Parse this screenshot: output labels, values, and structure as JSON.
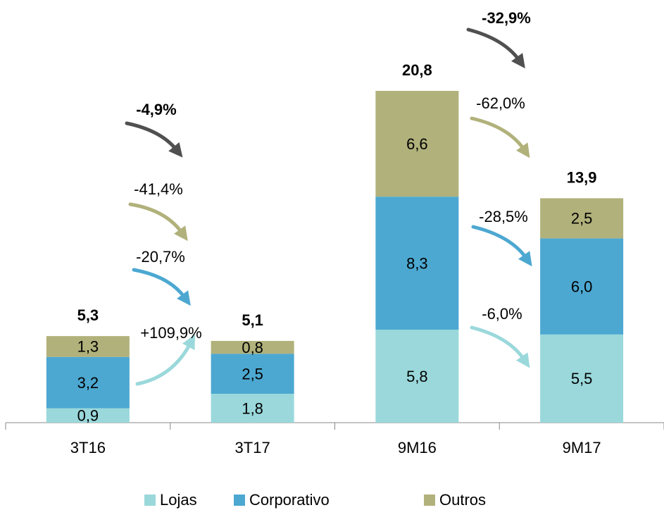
{
  "chart_data": {
    "type": "stacked-bar",
    "categories": [
      "3T16",
      "3T17",
      "9M16",
      "9M17"
    ],
    "series": [
      {
        "name": "Lojas",
        "color": "#9ad8db",
        "values": [
          0.9,
          1.8,
          5.8,
          5.5
        ],
        "value_labels": [
          "0,9",
          "1,8",
          "5,8",
          "5,5"
        ]
      },
      {
        "name": "Corporativo",
        "color": "#4ca8d1",
        "values": [
          3.2,
          2.5,
          8.3,
          6.0
        ],
        "value_labels": [
          "3,2",
          "2,5",
          "8,3",
          "6,0"
        ]
      },
      {
        "name": "Outros",
        "color": "#b1b17b",
        "values": [
          1.3,
          0.8,
          6.6,
          2.5
        ],
        "value_labels": [
          "1,3",
          "0,8",
          "6,6",
          "2,5"
        ]
      }
    ],
    "totals": {
      "values": [
        5.3,
        5.1,
        20.8,
        13.9
      ],
      "value_labels": [
        "5,3",
        "5,1",
        "20,8",
        "13,9"
      ]
    },
    "annotations": [
      "-4,9%",
      "-41,4%",
      "-20,7%",
      "+109,9%",
      "-32,9%",
      "-62,0%",
      "-28,5%",
      "-6,0%"
    ],
    "legend": "bottom"
  }
}
